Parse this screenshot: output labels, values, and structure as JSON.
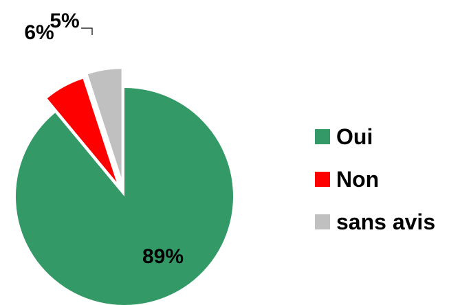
{
  "chart_data": {
    "type": "pie",
    "title": "",
    "slices": [
      {
        "label": "Oui",
        "value": 89,
        "value_label": "89%",
        "color": "#339966"
      },
      {
        "label": "Non",
        "value": 6,
        "value_label": "6%",
        "color": "#ff0000"
      },
      {
        "label": "sans avis",
        "value": 5,
        "value_label": "5%",
        "color": "#c0c0c0"
      }
    ],
    "legend_position": "right",
    "exploded_slices": [
      "Non",
      "sans avis"
    ]
  }
}
